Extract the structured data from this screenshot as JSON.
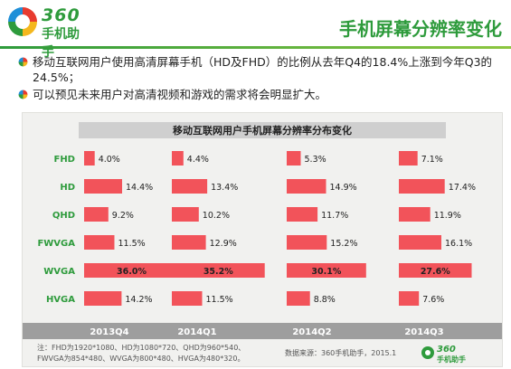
{
  "header": {
    "brand": "360",
    "brand_sub": "手机助手",
    "title": "手机屏幕分辨率变化",
    "logo_icon": "swirl-logo-icon"
  },
  "bullets": [
    "移动互联网用户使用高清屏幕手机（HD及FHD）的比例从去年Q4的18.4%上涨到今年Q3的24.5%；",
    "可以预见未来用户对高清视频和游戏的需求将会明显扩大。"
  ],
  "footer": {
    "note_line1": "注：FHD为1920*1080、HD为1080*720、QHD为960*540、",
    "note_line2": "FWVGA为854*480、WVGA为800*480、HVGA为480*320。",
    "source": "数据来源：360手机助手，2015.1",
    "logo_brand": "360",
    "logo_sub": "手机助手"
  },
  "colors": {
    "bar": "#f2535a",
    "green": "#2e9b3c",
    "panel": "#f1f1ef",
    "title_strip": "#cfcfcf",
    "header_band": "#9e9e9e"
  },
  "chart_data": {
    "type": "bar",
    "title": "移动互联网用户手机屏幕分辨率分布变化",
    "categories": [
      "FHD",
      "HD",
      "QHD",
      "FWVGA",
      "WVGA",
      "HVGA"
    ],
    "series": [
      {
        "name": "2013Q4",
        "values": [
          4.0,
          14.4,
          9.2,
          11.5,
          36.0,
          14.2
        ]
      },
      {
        "name": "2014Q1",
        "values": [
          4.4,
          13.4,
          10.2,
          12.9,
          35.2,
          11.5
        ]
      },
      {
        "name": "2014Q2",
        "values": [
          5.3,
          14.9,
          11.7,
          15.2,
          30.1,
          8.8
        ]
      },
      {
        "name": "2014Q3",
        "values": [
          7.1,
          17.4,
          11.9,
          16.1,
          27.6,
          7.6
        ]
      }
    ],
    "value_format": "%",
    "max_value": 36.0
  }
}
